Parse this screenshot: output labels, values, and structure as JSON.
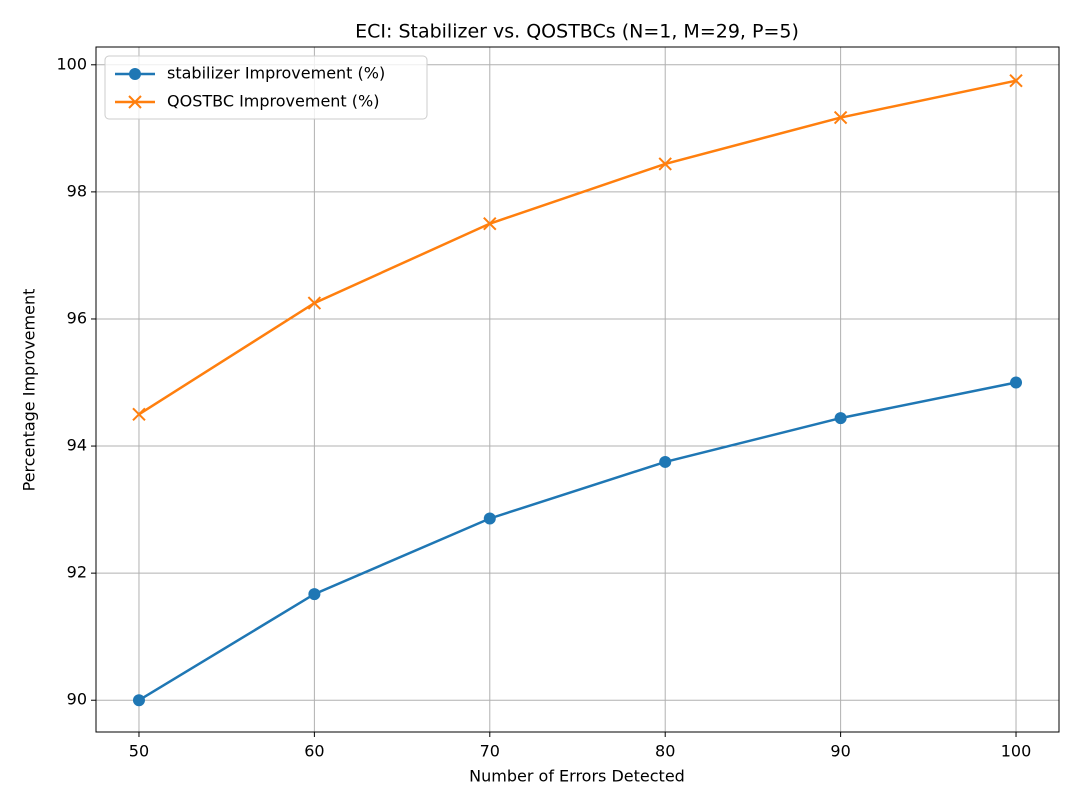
{
  "chart_data": {
    "type": "line",
    "title": "ECI: Stabilizer vs. QOSTBCs (N=1, M=29, P=5)",
    "x_label": "Number of Errors Detected",
    "y_label": "Percentage Improvement",
    "x": [
      50,
      60,
      70,
      80,
      90,
      100
    ],
    "series": [
      {
        "name": "stabilizer Improvement (%)",
        "color": "#1f77b4",
        "marker": "o",
        "values": [
          90,
          91.67,
          92.86,
          93.75,
          94.44,
          95
        ]
      },
      {
        "name": "QOSTBC Improvement (%)",
        "color": "#ff7f0e",
        "marker": "x",
        "values": [
          94.5,
          96.25,
          97.5,
          98.44,
          99.17,
          99.75
        ]
      }
    ],
    "xlim": [
      47.55,
      102.45
    ],
    "ylim": [
      89.5,
      100.28
    ],
    "xticks": [
      50,
      60,
      70,
      80,
      90,
      100
    ],
    "yticks": [
      90,
      92,
      94,
      96,
      98,
      100
    ],
    "grid": true,
    "legend": "upper-left"
  }
}
